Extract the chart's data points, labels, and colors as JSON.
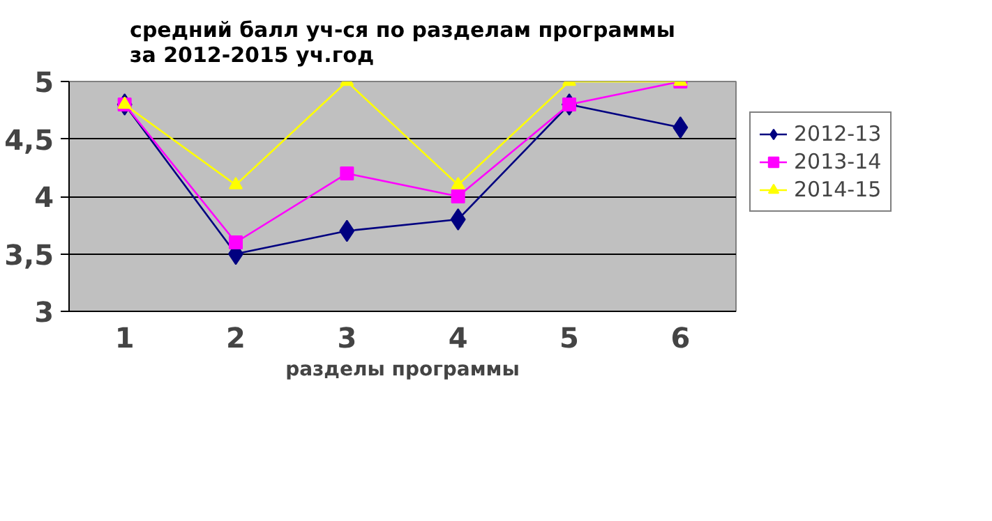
{
  "chart_data": {
    "type": "line",
    "title": "средний балл уч-ся по разделам программы\nза 2012-2015 уч.год",
    "xlabel": "разделы программы",
    "categories": [
      "1",
      "2",
      "3",
      "4",
      "5",
      "6"
    ],
    "ylim": [
      3,
      5
    ],
    "yticks": [
      3,
      {
        "value": 3.5,
        "label": "3,5"
      },
      4,
      {
        "value": 4.5,
        "label": "4,5"
      },
      5
    ],
    "grid": "y",
    "legend": "right",
    "series": [
      {
        "name": "2012-13",
        "color": "#000080",
        "marker": "diamond",
        "values": [
          4.8,
          3.5,
          3.7,
          3.8,
          4.8,
          4.6
        ]
      },
      {
        "name": "2013-14",
        "color": "#ff00ff",
        "marker": "square",
        "values": [
          4.8,
          3.6,
          4.2,
          4.0,
          4.8,
          5.0
        ]
      },
      {
        "name": "2014-15",
        "color": "#ffff00",
        "marker": "triangle",
        "values": [
          4.8,
          4.1,
          5.0,
          4.1,
          5.0,
          5.0
        ]
      }
    ]
  }
}
